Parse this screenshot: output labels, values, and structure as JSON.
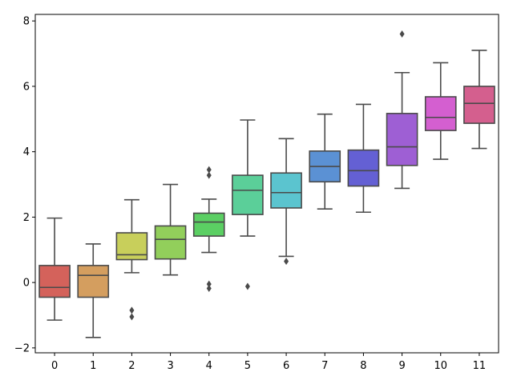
{
  "chart_data": {
    "type": "box",
    "title": "",
    "xlabel": "",
    "ylabel": "",
    "ylim": [
      -2.15,
      8.2
    ],
    "y_ticks": [
      -2,
      0,
      2,
      4,
      6,
      8
    ],
    "grid": false,
    "categories": [
      "0",
      "1",
      "2",
      "3",
      "4",
      "5",
      "6",
      "7",
      "8",
      "9",
      "10",
      "11"
    ],
    "boxes": [
      {
        "category": "0",
        "whisker_low": -1.15,
        "q1": -0.45,
        "median": -0.15,
        "q3": 0.52,
        "whisker_high": 1.97,
        "outliers": [],
        "color": "#d4625b"
      },
      {
        "category": "1",
        "whisker_low": -1.68,
        "q1": -0.45,
        "median": 0.22,
        "q3": 0.52,
        "whisker_high": 1.18,
        "outliers": [],
        "color": "#d49e5f"
      },
      {
        "category": "2",
        "whisker_low": 0.3,
        "q1": 0.7,
        "median": 0.85,
        "q3": 1.52,
        "whisker_high": 2.53,
        "outliers": [
          -0.85,
          -1.05
        ],
        "color": "#c8cf5b"
      },
      {
        "category": "3",
        "whisker_low": 0.23,
        "q1": 0.72,
        "median": 1.32,
        "q3": 1.73,
        "whisker_high": 3.0,
        "outliers": [],
        "color": "#92cf5b"
      },
      {
        "category": "4",
        "whisker_low": 0.92,
        "q1": 1.42,
        "median": 1.85,
        "q3": 2.12,
        "whisker_high": 2.55,
        "outliers": [
          3.45,
          3.28,
          -0.05,
          -0.18
        ],
        "color": "#5bcf63"
      },
      {
        "category": "5",
        "whisker_low": 1.42,
        "q1": 2.08,
        "median": 2.82,
        "q3": 3.28,
        "whisker_high": 4.97,
        "outliers": [
          -0.12
        ],
        "color": "#5bcf99"
      },
      {
        "category": "6",
        "whisker_low": 0.8,
        "q1": 2.28,
        "median": 2.75,
        "q3": 3.35,
        "whisker_high": 4.4,
        "outliers": [
          0.65
        ],
        "color": "#5bc4cf"
      },
      {
        "category": "7",
        "whisker_low": 2.25,
        "q1": 3.08,
        "median": 3.55,
        "q3": 4.02,
        "whisker_high": 5.15,
        "outliers": [],
        "color": "#5b91d4"
      },
      {
        "category": "8",
        "whisker_low": 2.15,
        "q1": 2.95,
        "median": 3.42,
        "q3": 4.05,
        "whisker_high": 5.45,
        "outliers": [],
        "color": "#6460d4"
      },
      {
        "category": "9",
        "whisker_low": 2.88,
        "q1": 3.58,
        "median": 4.15,
        "q3": 5.17,
        "whisker_high": 6.42,
        "outliers": [
          7.6
        ],
        "color": "#9e5fd4"
      },
      {
        "category": "10",
        "whisker_low": 3.77,
        "q1": 4.65,
        "median": 5.05,
        "q3": 5.68,
        "whisker_high": 6.72,
        "outliers": [],
        "color": "#d45fd0"
      },
      {
        "category": "11",
        "whisker_low": 4.1,
        "q1": 4.87,
        "median": 5.48,
        "q3": 6.0,
        "whisker_high": 7.1,
        "outliers": [],
        "color": "#d45f8e"
      }
    ],
    "style": {
      "line_color": "#4a4a4a",
      "axis_color": "#000000"
    }
  }
}
